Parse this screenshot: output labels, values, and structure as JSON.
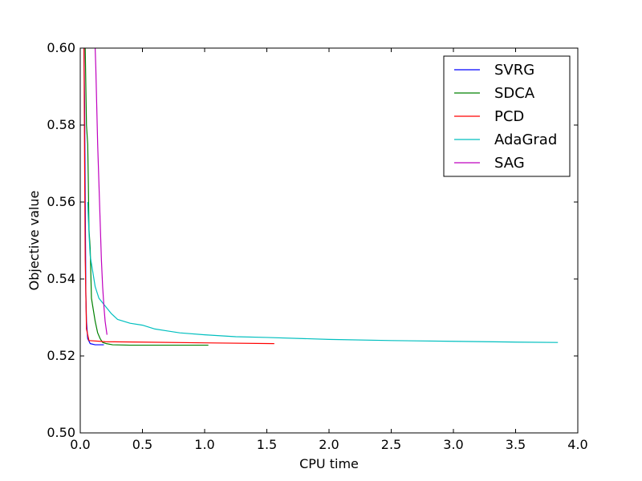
{
  "chart_data": {
    "type": "line",
    "xlabel": "CPU time",
    "ylabel": "Objective value",
    "xlim": [
      0,
      4
    ],
    "ylim": [
      0.5,
      0.6
    ],
    "xticks": [
      "0.0",
      "0.5",
      "1.0",
      "1.5",
      "2.0",
      "2.5",
      "3.0",
      "3.5",
      "4.0"
    ],
    "yticks": [
      "0.50",
      "0.52",
      "0.54",
      "0.56",
      "0.58",
      "0.60"
    ],
    "legend_position": "top-right",
    "grid": false,
    "series": [
      {
        "name": "SVRG",
        "color": "#0000ff",
        "points": [
          [
            0.03,
            0.6
          ],
          [
            0.035,
            0.585
          ],
          [
            0.04,
            0.56
          ],
          [
            0.045,
            0.536
          ],
          [
            0.05,
            0.529
          ],
          [
            0.06,
            0.5245
          ],
          [
            0.08,
            0.5232
          ],
          [
            0.12,
            0.5229
          ],
          [
            0.19,
            0.5229
          ]
        ]
      },
      {
        "name": "SDCA",
        "color": "#008000",
        "points": [
          [
            0.04,
            0.6
          ],
          [
            0.05,
            0.58
          ],
          [
            0.06,
            0.575
          ],
          [
            0.065,
            0.565
          ],
          [
            0.07,
            0.553
          ],
          [
            0.08,
            0.548
          ],
          [
            0.09,
            0.535
          ],
          [
            0.1,
            0.533
          ],
          [
            0.12,
            0.529
          ],
          [
            0.14,
            0.526
          ],
          [
            0.16,
            0.5245
          ],
          [
            0.18,
            0.5235
          ],
          [
            0.21,
            0.5232
          ],
          [
            0.26,
            0.5229
          ],
          [
            0.4,
            0.5228
          ],
          [
            1.03,
            0.5228
          ]
        ]
      },
      {
        "name": "PCD",
        "color": "#ff0000",
        "points": [
          [
            0.03,
            0.6
          ],
          [
            0.035,
            0.57
          ],
          [
            0.04,
            0.545
          ],
          [
            0.05,
            0.527
          ],
          [
            0.07,
            0.524
          ],
          [
            0.2,
            0.5237
          ],
          [
            0.5,
            0.5236
          ],
          [
            1.0,
            0.5234
          ],
          [
            1.56,
            0.5232
          ]
        ]
      },
      {
        "name": "AdaGrad",
        "color": "#00bfbf",
        "points": [
          [
            0.06,
            0.56
          ],
          [
            0.07,
            0.552
          ],
          [
            0.08,
            0.546
          ],
          [
            0.1,
            0.542
          ],
          [
            0.12,
            0.538
          ],
          [
            0.15,
            0.535
          ],
          [
            0.2,
            0.533
          ],
          [
            0.25,
            0.531
          ],
          [
            0.3,
            0.5295
          ],
          [
            0.35,
            0.529
          ],
          [
            0.4,
            0.5285
          ],
          [
            0.5,
            0.528
          ],
          [
            0.6,
            0.527
          ],
          [
            0.7,
            0.5265
          ],
          [
            0.8,
            0.526
          ],
          [
            1.0,
            0.5255
          ],
          [
            1.25,
            0.525
          ],
          [
            1.5,
            0.5248
          ],
          [
            2.0,
            0.5243
          ],
          [
            2.5,
            0.524
          ],
          [
            3.0,
            0.5238
          ],
          [
            3.5,
            0.5236
          ],
          [
            3.84,
            0.5235
          ]
        ]
      },
      {
        "name": "SAG",
        "color": "#bf00bf",
        "points": [
          [
            0.12,
            0.6
          ],
          [
            0.125,
            0.595
          ],
          [
            0.14,
            0.575
          ],
          [
            0.16,
            0.555
          ],
          [
            0.17,
            0.545
          ],
          [
            0.18,
            0.538
          ],
          [
            0.19,
            0.533
          ],
          [
            0.2,
            0.529
          ],
          [
            0.215,
            0.5255
          ]
        ]
      }
    ]
  }
}
